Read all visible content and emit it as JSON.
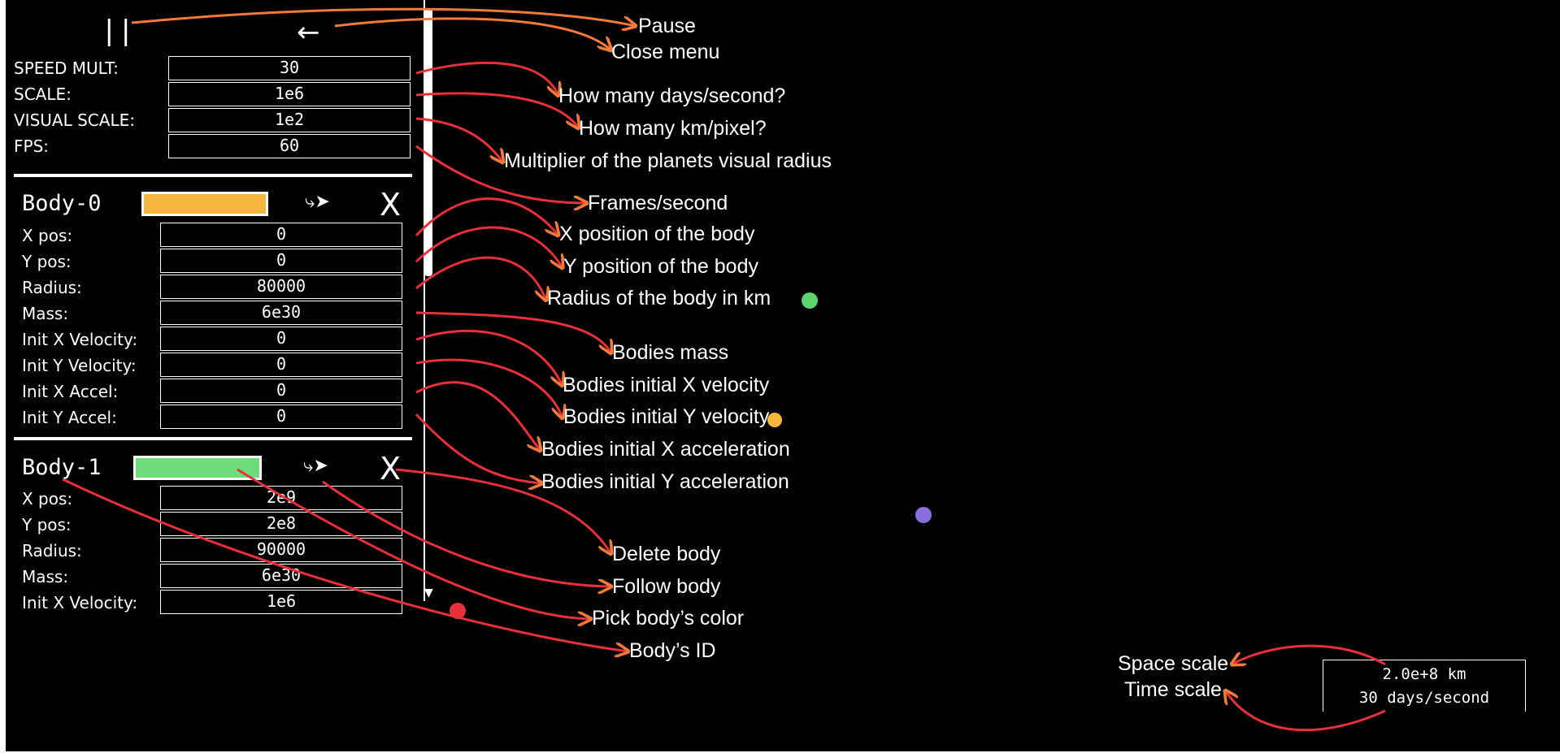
{
  "controls": {
    "pause_icon": "||",
    "close_icon": "←"
  },
  "settings": [
    {
      "label": "SPEED MULT:",
      "value": "30"
    },
    {
      "label": "SCALE:",
      "value": "1e6"
    },
    {
      "label": "VISUAL SCALE:",
      "value": "1e2"
    },
    {
      "label": "FPS:",
      "value": "60"
    }
  ],
  "bodies": [
    {
      "id": "Body-0",
      "color": "#f5b73b",
      "follow_icon": "⤷➤",
      "delete_icon": "X",
      "fields": [
        {
          "label": "X pos:",
          "value": "0"
        },
        {
          "label": "Y pos:",
          "value": "0"
        },
        {
          "label": "Radius:",
          "value": "80000"
        },
        {
          "label": "Mass:",
          "value": "6e30"
        },
        {
          "label": "Init X Velocity:",
          "value": "0"
        },
        {
          "label": "Init Y Velocity:",
          "value": "0"
        },
        {
          "label": "Init X Accel:",
          "value": "0"
        },
        {
          "label": "Init Y Accel:",
          "value": "0"
        }
      ]
    },
    {
      "id": "Body-1",
      "color": "#6ddc7a",
      "follow_icon": "⤷➤",
      "delete_icon": "X",
      "fields": [
        {
          "label": "X pos:",
          "value": "2e9"
        },
        {
          "label": "Y pos:",
          "value": "2e8"
        },
        {
          "label": "Radius:",
          "value": "90000"
        },
        {
          "label": "Mass:",
          "value": "6e30"
        },
        {
          "label": "Init X Velocity:",
          "value": "1e6"
        }
      ]
    }
  ],
  "annotations": {
    "pause": "Pause",
    "close_menu": "Close menu",
    "speed": "How many days/second?",
    "scale": "How many km/pixel?",
    "visual_scale": "Multiplier of the planets visual radius",
    "fps": "Frames/second",
    "x_pos": "X position of the body",
    "y_pos": "Y position of the body",
    "radius": "Radius of the body in km",
    "mass": "Bodies mass",
    "init_x_vel": "Bodies initial X velocity",
    "init_y_vel": "Bodies initial Y velocity",
    "init_x_acc": "Bodies initial X acceleration",
    "init_y_acc": "Bodies initial Y acceleration",
    "delete": "Delete body",
    "follow": "Follow body",
    "pick_color": "Pick body’s color",
    "body_id": "Body’s ID",
    "space_scale": "Space scale",
    "time_scale": "Time scale"
  },
  "scale_display": {
    "space": "2.0e+8 km",
    "time": "30 days/second"
  },
  "planets": [
    {
      "name": "green-planet",
      "color": "#5ed46c"
    },
    {
      "name": "orange-planet",
      "color": "#f5b73b"
    },
    {
      "name": "purple-planet",
      "color": "#8a6ee0"
    },
    {
      "name": "red-planet",
      "color": "#e8303a"
    }
  ],
  "colors": {
    "background": "#000000",
    "arrow_orange": "#f47a3a",
    "arrow_red": "#e8303a"
  }
}
